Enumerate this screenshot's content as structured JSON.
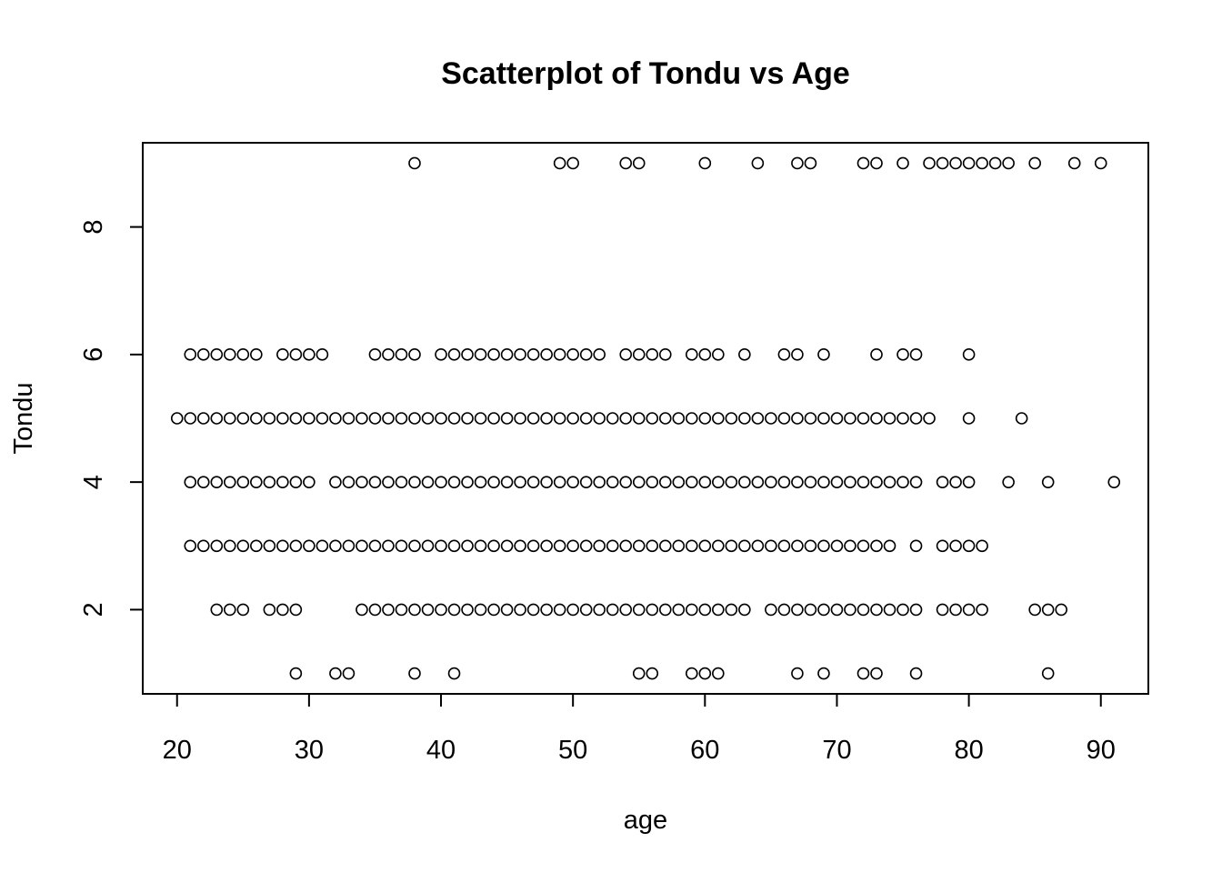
{
  "chart_data": {
    "type": "scatter",
    "title": "Scatterplot of Tondu vs Age",
    "xlabel": "age",
    "ylabel": "Tondu",
    "xlim": [
      17.4,
      93.6
    ],
    "ylim": [
      0.68,
      9.32
    ],
    "x_ticks": [
      20,
      30,
      40,
      50,
      60,
      70,
      80,
      90
    ],
    "y_ticks": [
      2,
      4,
      6,
      8
    ],
    "grid": false,
    "rows": [
      {
        "y": 9,
        "x": [
          38,
          49,
          50,
          54,
          55,
          60,
          64,
          67,
          68,
          72,
          73,
          75,
          77,
          78,
          79,
          80,
          81,
          82,
          83,
          85,
          88,
          90
        ]
      },
      {
        "y": 6,
        "x": [
          21,
          22,
          23,
          24,
          25,
          26,
          28,
          29,
          30,
          31,
          35,
          36,
          37,
          38,
          40,
          41,
          42,
          43,
          44,
          45,
          46,
          47,
          48,
          49,
          50,
          51,
          52,
          54,
          55,
          56,
          57,
          59,
          60,
          61,
          63,
          66,
          67,
          69,
          73,
          75,
          76,
          80
        ]
      },
      {
        "y": 5,
        "x": [
          20,
          21,
          22,
          23,
          24,
          25,
          26,
          27,
          28,
          29,
          30,
          31,
          32,
          33,
          34,
          35,
          36,
          37,
          38,
          39,
          40,
          41,
          42,
          43,
          44,
          45,
          46,
          47,
          48,
          49,
          50,
          51,
          52,
          53,
          54,
          55,
          56,
          57,
          58,
          59,
          60,
          61,
          62,
          63,
          64,
          65,
          66,
          67,
          68,
          69,
          70,
          71,
          72,
          73,
          74,
          75,
          76,
          77,
          80,
          84
        ]
      },
      {
        "y": 4,
        "x": [
          21,
          22,
          23,
          24,
          25,
          26,
          27,
          28,
          29,
          30,
          32,
          33,
          34,
          35,
          36,
          37,
          38,
          39,
          40,
          41,
          42,
          43,
          44,
          45,
          46,
          47,
          48,
          49,
          50,
          51,
          52,
          53,
          54,
          55,
          56,
          57,
          58,
          59,
          60,
          61,
          62,
          63,
          64,
          65,
          66,
          67,
          68,
          69,
          70,
          71,
          72,
          73,
          74,
          75,
          76,
          78,
          79,
          80,
          83,
          86,
          91
        ]
      },
      {
        "y": 3,
        "x": [
          21,
          22,
          23,
          24,
          25,
          26,
          27,
          28,
          29,
          30,
          31,
          32,
          33,
          34,
          35,
          36,
          37,
          38,
          39,
          40,
          41,
          42,
          43,
          44,
          45,
          46,
          47,
          48,
          49,
          50,
          51,
          52,
          53,
          54,
          55,
          56,
          57,
          58,
          59,
          60,
          61,
          62,
          63,
          64,
          65,
          66,
          67,
          68,
          69,
          70,
          71,
          72,
          73,
          74,
          76,
          78,
          79,
          80,
          81
        ]
      },
      {
        "y": 2,
        "x": [
          23,
          24,
          25,
          27,
          28,
          29,
          34,
          35,
          36,
          37,
          38,
          39,
          40,
          41,
          42,
          43,
          44,
          45,
          46,
          47,
          48,
          49,
          50,
          51,
          52,
          53,
          54,
          55,
          56,
          57,
          58,
          59,
          60,
          61,
          62,
          63,
          65,
          66,
          67,
          68,
          69,
          70,
          71,
          72,
          73,
          74,
          75,
          76,
          78,
          79,
          80,
          81,
          85,
          86,
          87
        ]
      },
      {
        "y": 1,
        "x": [
          29,
          32,
          33,
          38,
          41,
          55,
          56,
          59,
          60,
          61,
          67,
          69,
          72,
          73,
          76,
          86
        ]
      }
    ]
  }
}
